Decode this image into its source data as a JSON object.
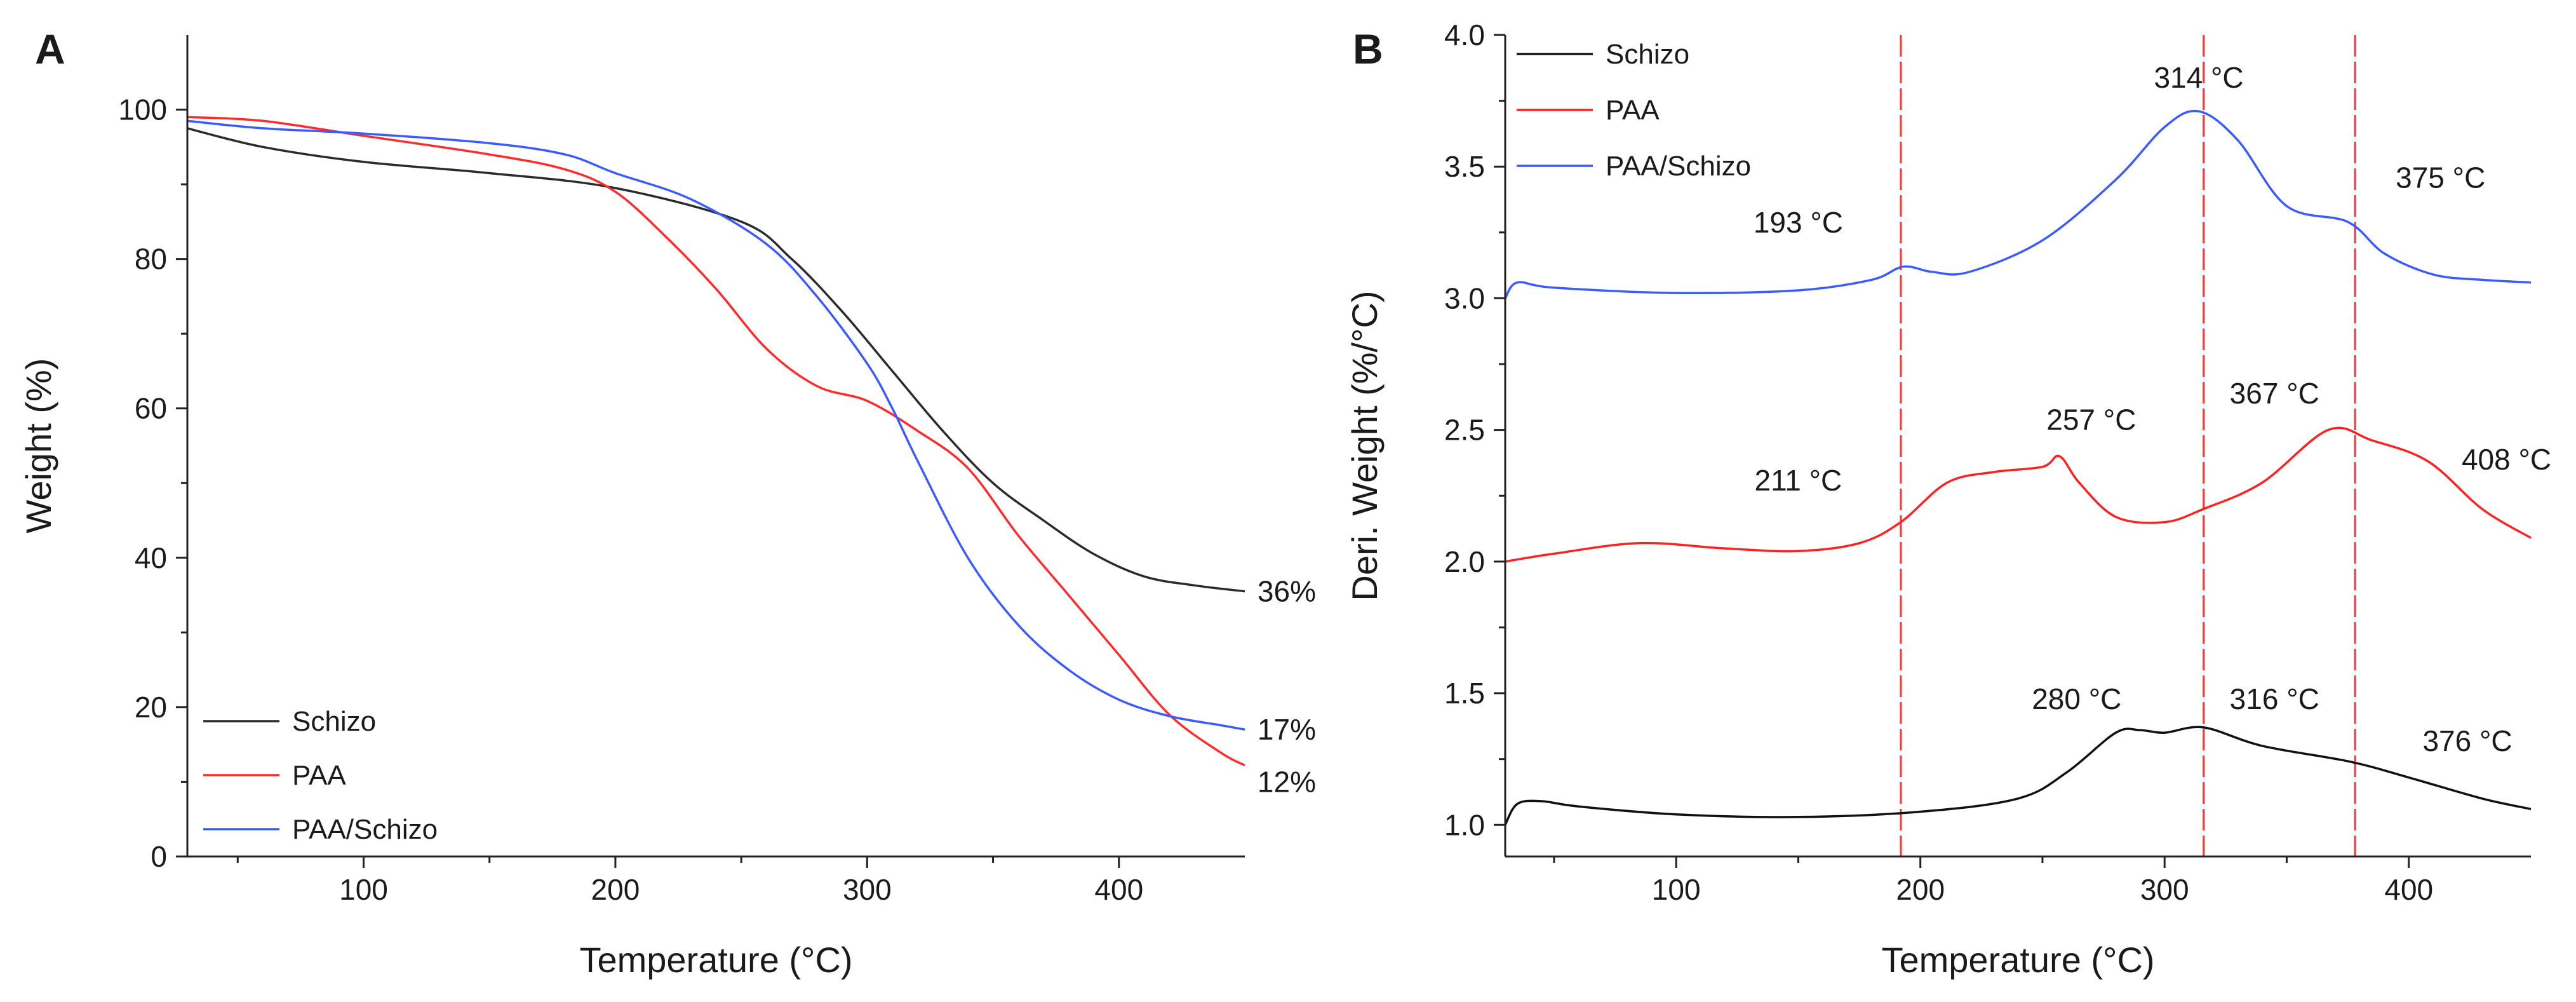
{
  "figure": {
    "panels": [
      "A",
      "B"
    ]
  },
  "chart_data": [
    {
      "id": "A",
      "type": "line",
      "panel_label": "A",
      "title": "",
      "xlabel": "Temperature (°C)",
      "ylabel": "Weight (%)",
      "xlim": [
        30,
        450
      ],
      "ylim": [
        0,
        110
      ],
      "xticks": [
        100,
        200,
        300,
        400
      ],
      "yticks": [
        0,
        20,
        40,
        60,
        80,
        100
      ],
      "legend_position": "bottom-left",
      "series": [
        {
          "name": "Schizo",
          "color": "#2b2b2b",
          "x": [
            30,
            60,
            100,
            150,
            200,
            250,
            270,
            290,
            310,
            330,
            350,
            370,
            390,
            410,
            430,
            450
          ],
          "y": [
            97.5,
            95,
            93,
            91.5,
            89.5,
            85,
            80,
            73,
            65,
            57,
            50,
            45,
            40.5,
            37.5,
            36.3,
            35.5
          ]
        },
        {
          "name": "PAA",
          "color": "#ff2a2a",
          "x": [
            30,
            60,
            100,
            150,
            180,
            200,
            220,
            240,
            260,
            280,
            300,
            320,
            340,
            360,
            380,
            400,
            420,
            440,
            450
          ],
          "y": [
            99,
            98.5,
            96.5,
            94,
            92,
            89,
            83,
            76,
            68,
            63,
            61,
            57,
            52,
            43,
            35,
            27,
            19,
            14,
            12.2
          ]
        },
        {
          "name": "PAA/Schizo",
          "color": "#3a5bff",
          "x": [
            30,
            60,
            100,
            150,
            180,
            200,
            230,
            260,
            280,
            300,
            310,
            320,
            340,
            360,
            380,
            400,
            420,
            440,
            450
          ],
          "y": [
            98.5,
            97.5,
            96.8,
            95.5,
            94,
            91.5,
            88,
            82,
            75,
            66,
            60,
            53,
            40,
            31,
            25,
            21,
            18.8,
            17.6,
            17
          ]
        }
      ],
      "annotations": [
        {
          "text": "36%",
          "x": 452,
          "y": 35.5
        },
        {
          "text": "17%",
          "x": 452,
          "y": 17
        },
        {
          "text": "12%",
          "x": 452,
          "y": 10
        }
      ]
    },
    {
      "id": "B",
      "type": "line",
      "panel_label": "B",
      "title": "",
      "xlabel": "Temperature (°C)",
      "ylabel": "Deri. Weight (%/°C)",
      "xlim": [
        30,
        450
      ],
      "ylim": [
        0.88,
        4.0
      ],
      "xticks": [
        100,
        200,
        300,
        400
      ],
      "yticks": [
        1.0,
        1.5,
        2.0,
        2.5,
        3.0,
        3.5,
        4.0
      ],
      "ytick_labels": [
        "1.0",
        "1.5",
        "2.0",
        "2.5",
        "3.0",
        "3.5",
        "4.0"
      ],
      "legend_position": "top-left",
      "vlines": [
        192,
        316,
        378
      ],
      "vline_color": "#ff3030",
      "series": [
        {
          "name": "Schizo",
          "color": "#111111",
          "x": [
            30,
            35,
            45,
            60,
            100,
            150,
            200,
            240,
            260,
            280,
            290,
            300,
            316,
            340,
            376,
            400,
            430,
            450
          ],
          "y": [
            1.0,
            1.08,
            1.09,
            1.07,
            1.04,
            1.03,
            1.05,
            1.1,
            1.2,
            1.35,
            1.36,
            1.35,
            1.37,
            1.3,
            1.24,
            1.18,
            1.1,
            1.06
          ]
        },
        {
          "name": "PAA",
          "color": "#ff2020",
          "x": [
            30,
            50,
            85,
            120,
            150,
            175,
            192,
            211,
            230,
            250,
            257,
            265,
            280,
            300,
            316,
            340,
            367,
            385,
            408,
            430,
            450
          ],
          "y": [
            2.0,
            2.03,
            2.07,
            2.05,
            2.04,
            2.07,
            2.15,
            2.3,
            2.34,
            2.36,
            2.4,
            2.3,
            2.17,
            2.15,
            2.2,
            2.3,
            2.5,
            2.46,
            2.38,
            2.2,
            2.09
          ]
        },
        {
          "name": "PAA/Schizo",
          "color": "#3a5bff",
          "x": [
            30,
            35,
            50,
            100,
            150,
            180,
            193,
            205,
            220,
            250,
            280,
            300,
            314,
            330,
            350,
            375,
            390,
            410,
            430,
            450
          ],
          "y": [
            3.0,
            3.06,
            3.04,
            3.02,
            3.03,
            3.07,
            3.12,
            3.1,
            3.1,
            3.22,
            3.45,
            3.65,
            3.71,
            3.6,
            3.35,
            3.29,
            3.17,
            3.09,
            3.07,
            3.06
          ]
        }
      ],
      "annotations": [
        {
          "text": "314 °C",
          "x": 314,
          "y": 3.8
        },
        {
          "text": "193 °C",
          "x": 150,
          "y": 3.25
        },
        {
          "text": "375 °C",
          "x": 413,
          "y": 3.42
        },
        {
          "text": "211 °C",
          "x": 150,
          "y": 2.27
        },
        {
          "text": "257 °C",
          "x": 270,
          "y": 2.5
        },
        {
          "text": "367 °C",
          "x": 345,
          "y": 2.6
        },
        {
          "text": "408 °C",
          "x": 440,
          "y": 2.35
        },
        {
          "text": "280 °C",
          "x": 264,
          "y": 1.44
        },
        {
          "text": "316 °C",
          "x": 345,
          "y": 1.44
        },
        {
          "text": "376 °C",
          "x": 424,
          "y": 1.28
        }
      ]
    }
  ]
}
